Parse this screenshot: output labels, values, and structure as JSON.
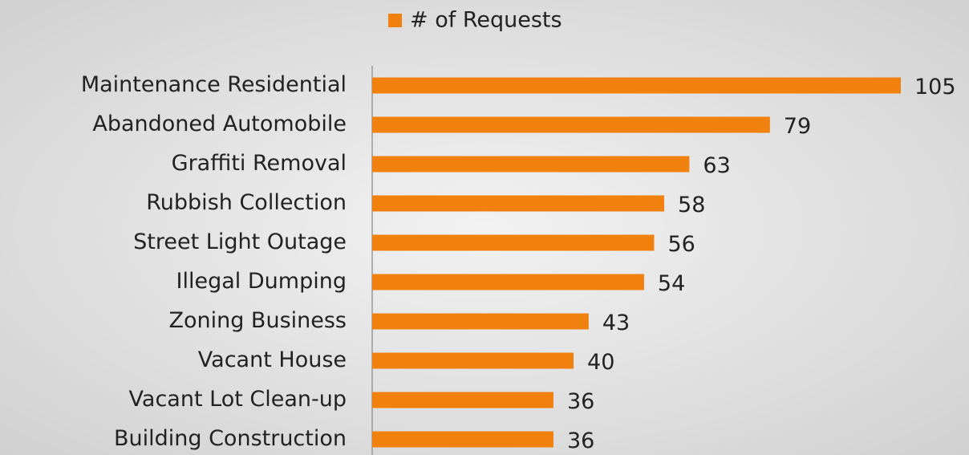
{
  "chart_data": {
    "type": "bar",
    "orientation": "horizontal",
    "categories": [
      "Maintenance Residential",
      "Abandoned Automobile",
      "Graffiti Removal",
      "Rubbish Collection",
      "Street Light Outage",
      "Illegal Dumping",
      "Zoning Business",
      "Vacant House",
      "Vacant Lot Clean-up",
      "Building Construction"
    ],
    "series": [
      {
        "name": "# of Requests",
        "color": "#f0810f",
        "values": [
          105,
          79,
          63,
          58,
          56,
          54,
          43,
          40,
          36,
          36
        ]
      }
    ],
    "legend": "top"
  }
}
